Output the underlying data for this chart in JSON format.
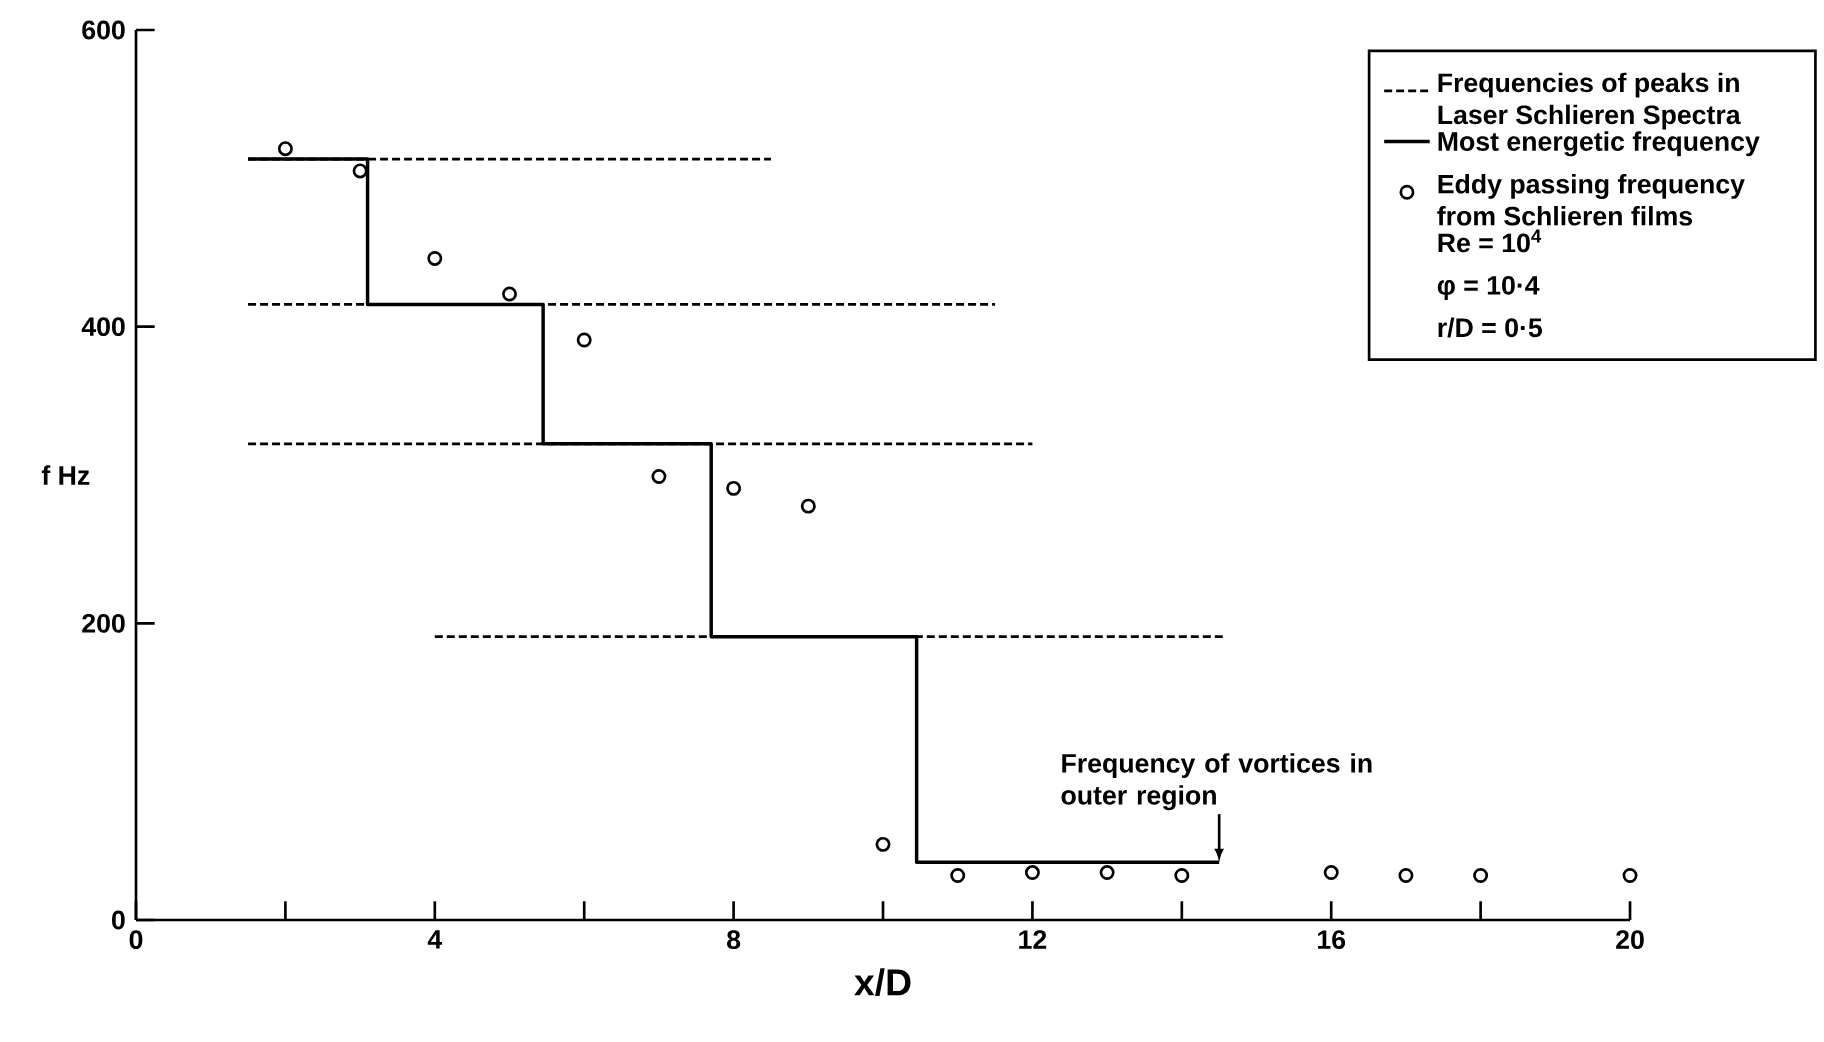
{
  "chart_data": {
    "type": "scatter",
    "xlabel": "x/D",
    "ylabel": "f Hz",
    "xlim": [
      0,
      20
    ],
    "ylim": [
      0,
      600
    ],
    "xticks": [
      0,
      {
        "value": 2,
        "label": null
      },
      4,
      {
        "value": 6,
        "label": null
      },
      8,
      {
        "value": 10,
        "label": null
      },
      12,
      {
        "value": 14,
        "label": null
      },
      16,
      {
        "value": 18,
        "label": null
      },
      20
    ],
    "yticks": [
      0,
      200,
      400,
      600
    ],
    "legend": "top right",
    "series": [
      {
        "name": "Frequencies of peaks in Laser Schlieren Spectra",
        "type": "line",
        "line_style": "dashed",
        "color": "#000000",
        "x": [
          1.5,
          8.5
        ],
        "values": [
          513,
          513
        ]
      },
      {
        "type": "line",
        "line_style": "dashed",
        "color": "#000000",
        "x": [
          1.5,
          11.5
        ],
        "values": [
          415,
          415
        ]
      },
      {
        "type": "line",
        "line_style": "dashed",
        "color": "#000000",
        "x": [
          1.5,
          12
        ],
        "values": [
          321,
          321
        ]
      },
      {
        "type": "line",
        "line_style": "dashed",
        "color": "#000000",
        "x": [
          4,
          14.6
        ],
        "values": [
          191,
          191
        ]
      },
      {
        "name": "Most energetic frequency",
        "type": "step",
        "line_style": "solid",
        "color": "#000000",
        "x": [
          1.5,
          3.1,
          5.45,
          7.7,
          10.45,
          14.5
        ],
        "values": [
          513,
          415,
          321,
          191,
          39,
          39
        ]
      },
      {
        "name": "Eddy passing frequency from Schlieren films",
        "marker": "circle",
        "color": "#000000",
        "x": [
          2,
          3,
          4,
          5,
          6,
          7,
          8,
          9,
          10,
          11,
          12,
          13,
          14,
          16,
          17,
          18,
          20
        ],
        "values": [
          520,
          505,
          446,
          422,
          391,
          299,
          291,
          279,
          51,
          30,
          32,
          32,
          30,
          32,
          30,
          30,
          30
        ]
      }
    ],
    "annotations": [
      {
        "text": "Frequency of vortices in outer region",
        "x": 14.5,
        "y": 39
      },
      "Re = 10$^{4}$",
      "φ = 10·4",
      "r/D = 0·5"
    ]
  }
}
